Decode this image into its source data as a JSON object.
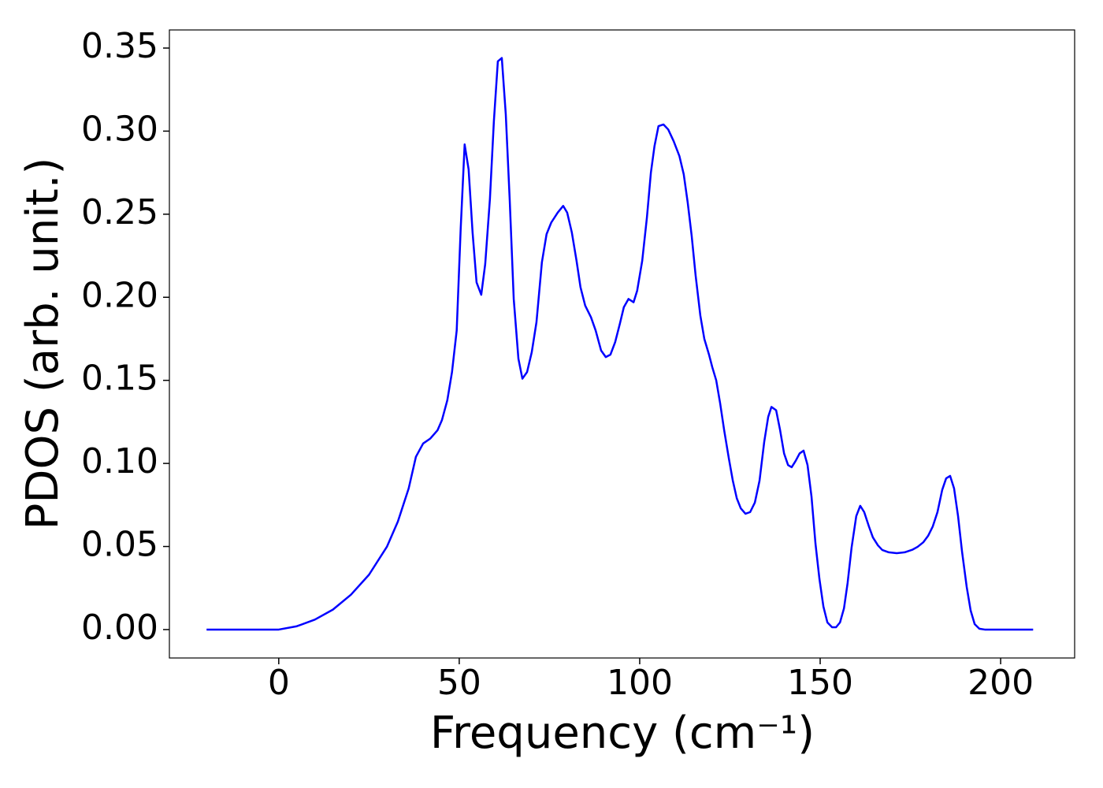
{
  "chart_data": {
    "type": "line",
    "xlabel": "Frequency (cm⁻¹)",
    "ylabel": "PDOS (arb. unit.)",
    "color": "#0000ff",
    "x": [
      -20,
      0,
      5,
      10,
      15,
      20,
      25,
      30,
      33,
      36,
      38,
      40,
      42,
      44,
      45.2,
      46.7,
      48,
      49.3,
      50.4,
      51.5,
      52.6,
      53.7,
      54.8,
      56.1,
      57.2,
      58.5,
      59.6,
      60.7,
      61.8,
      62.9,
      64,
      65.1,
      66.4,
      67.5,
      68.8,
      70.1,
      71.4,
      72.9,
      74.2,
      75.5,
      77.3,
      78.8,
      79.9,
      81.2,
      82.5,
      83.6,
      84.9,
      86.5,
      87.8,
      89.3,
      90.6,
      91.9,
      93.2,
      94.5,
      95.6,
      96.9,
      98.3,
      99.3,
      100.7,
      102,
      103.1,
      104.1,
      105.2,
      106.6,
      107.9,
      109.4,
      111,
      112.2,
      113.3,
      114.4,
      115.5,
      116.8,
      117.9,
      119.2,
      120.1,
      121.2,
      122.3,
      123.4,
      124.7,
      125.8,
      126.9,
      128,
      129.3,
      130.6,
      131.9,
      133.2,
      134.5,
      135.6,
      136.5,
      137.8,
      138.9,
      140,
      141.1,
      142.1,
      143.2,
      144.3,
      145.4,
      146.5,
      147.6,
      148.7,
      149.8,
      150.9,
      152,
      153.3,
      154.4,
      155.5,
      156.6,
      157.6,
      158.7,
      160,
      161.1,
      162.2,
      163.5,
      164.6,
      166,
      167.2,
      169,
      171.2,
      173.4,
      175.5,
      177,
      178.6,
      179.9,
      181.2,
      182.5,
      183.8,
      184.9,
      186,
      187.1,
      188.2,
      189.3,
      190.6,
      191.7,
      192.8,
      194.1,
      195.6,
      209
    ],
    "values": [
      0,
      0,
      0.002,
      0.006,
      0.012,
      0.021,
      0.033,
      0.05,
      0.065,
      0.085,
      0.104,
      0.112,
      0.115,
      0.12,
      0.126,
      0.138,
      0.155,
      0.18,
      0.241,
      0.292,
      0.277,
      0.239,
      0.209,
      0.2015,
      0.22,
      0.259,
      0.306,
      0.342,
      0.344,
      0.31,
      0.258,
      0.199,
      0.163,
      0.151,
      0.155,
      0.167,
      0.185,
      0.221,
      0.238,
      0.245,
      0.251,
      0.255,
      0.251,
      0.239,
      0.222,
      0.206,
      0.195,
      0.188,
      0.18,
      0.168,
      0.164,
      0.1655,
      0.173,
      0.184,
      0.194,
      0.199,
      0.197,
      0.204,
      0.222,
      0.248,
      0.275,
      0.291,
      0.303,
      0.304,
      0.301,
      0.294,
      0.285,
      0.274,
      0.257,
      0.237,
      0.213,
      0.189,
      0.175,
      0.1655,
      0.158,
      0.15,
      0.136,
      0.12,
      0.103,
      0.0896,
      0.079,
      0.073,
      0.0697,
      0.0707,
      0.0764,
      0.0896,
      0.113,
      0.128,
      0.134,
      0.132,
      0.12,
      0.106,
      0.099,
      0.0977,
      0.1015,
      0.106,
      0.1077,
      0.099,
      0.08,
      0.0517,
      0.0304,
      0.0138,
      0.0043,
      0.0014,
      0.0014,
      0.0043,
      0.0128,
      0.028,
      0.0493,
      0.0683,
      0.0745,
      0.0707,
      0.0621,
      0.0555,
      0.0507,
      0.0479,
      0.0465,
      0.046,
      0.0465,
      0.048,
      0.0498,
      0.0526,
      0.0564,
      0.0621,
      0.0707,
      0.084,
      0.091,
      0.0925,
      0.0849,
      0.0683,
      0.047,
      0.0256,
      0.0114,
      0.0033,
      0.0005,
      0,
      0
    ],
    "xlim": [
      -30.3,
      220.5
    ],
    "ylim": [
      -0.0171,
      0.3609
    ],
    "xticks": [
      0,
      50,
      100,
      150,
      200
    ],
    "yticks": [
      {
        "value": 0,
        "label": "0.00"
      },
      0.05,
      {
        "value": 0.1,
        "label": "0.10"
      },
      0.15,
      {
        "value": 0.2,
        "label": "0.20"
      },
      0.25,
      {
        "value": 0.3,
        "label": "0.30"
      },
      0.35
    ]
  }
}
